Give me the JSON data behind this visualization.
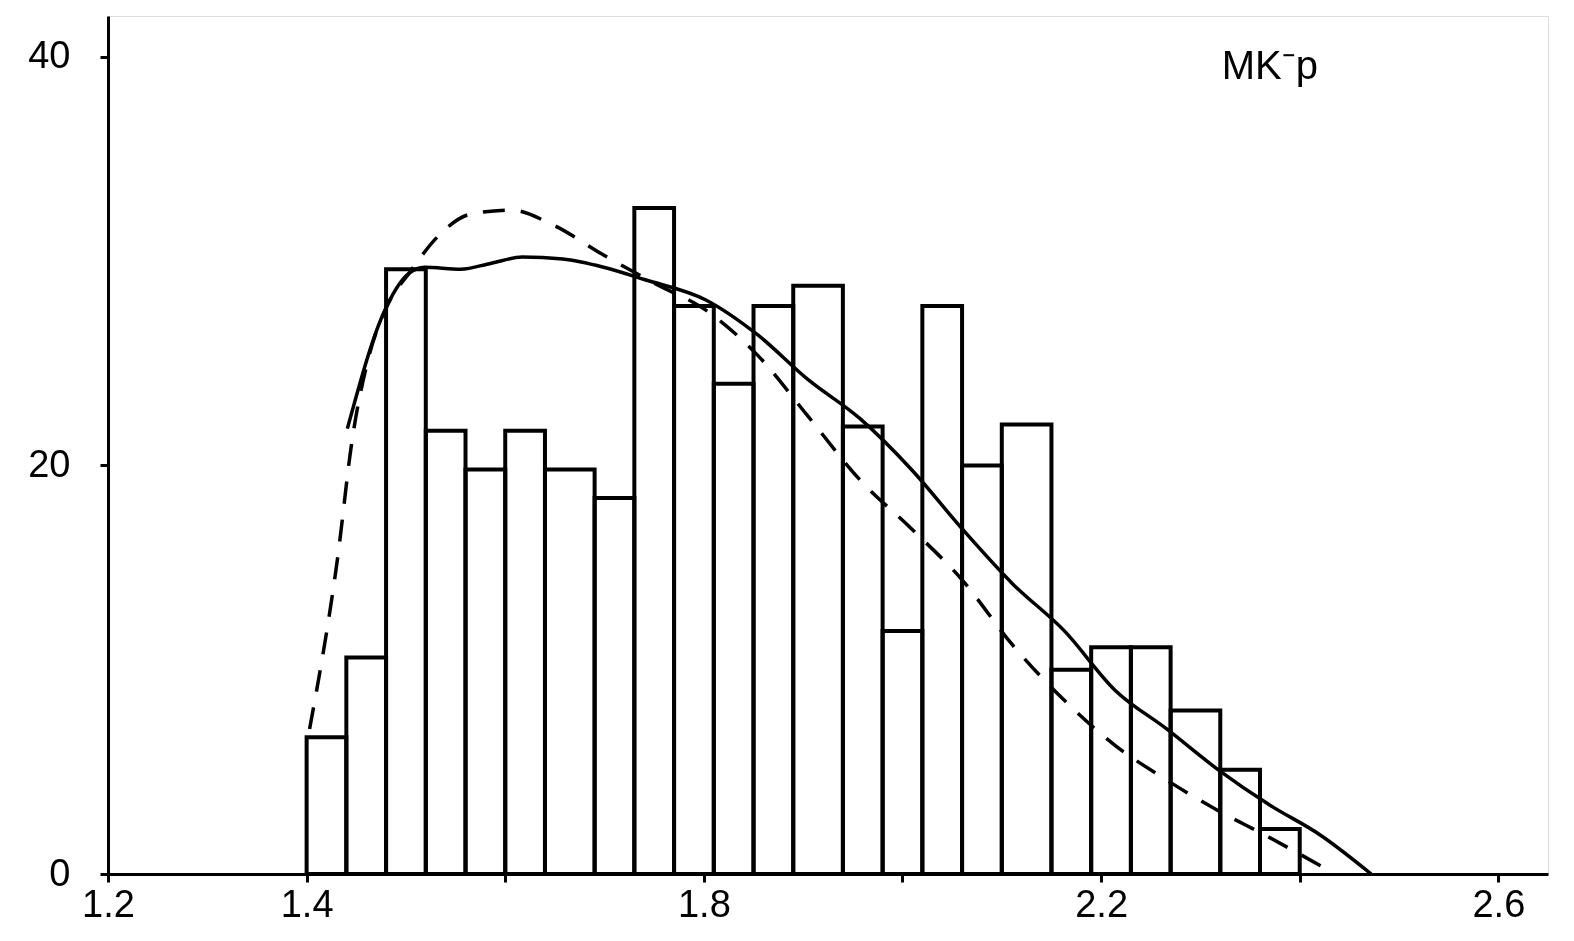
{
  "chart_data": {
    "type": "histogram",
    "title": "MK⁻p",
    "color": "#000000",
    "bins": [
      1.4,
      1.44,
      1.48,
      1.52,
      1.56,
      1.6,
      1.64,
      1.69,
      1.73,
      1.77,
      1.81,
      1.85,
      1.89,
      1.94,
      1.98,
      2.02,
      2.06,
      2.1,
      2.15,
      2.19,
      2.23,
      2.27,
      2.32,
      2.36,
      2.4
    ],
    "values": [
      6.7,
      10.6,
      29.6,
      21.7,
      19.8,
      21.7,
      19.8,
      18.4,
      32.6,
      27.8,
      24.0,
      27.8,
      28.8,
      21.9,
      11.9,
      27.8,
      20.0,
      22.0,
      10.0,
      11.1,
      11.1,
      8.0,
      5.1,
      2.2
    ],
    "series": [
      {
        "type": "line",
        "color": "#000000",
        "line_style": "solid",
        "x": [
          1.441,
          1.477,
          1.503,
          1.519,
          1.555,
          1.586,
          1.617,
          1.658,
          1.699,
          1.74,
          1.802,
          1.854,
          1.905,
          1.957,
          2.009,
          2.06,
          2.111,
          2.163,
          2.214,
          2.266,
          2.318,
          2.369,
          2.421,
          2.472
        ],
        "values": [
          21.8,
          27.4,
          29.4,
          29.7,
          29.6,
          29.9,
          30.2,
          30.1,
          29.7,
          29.1,
          28.1,
          26.4,
          24.2,
          22.3,
          19.8,
          16.9,
          14.2,
          11.9,
          9.0,
          7.1,
          5.1,
          3.4,
          1.9,
          0.0
        ]
      },
      {
        "type": "line",
        "color": "#000000",
        "line_style": "dashed",
        "x": [
          1.403,
          1.431,
          1.446,
          1.462,
          1.482,
          1.503,
          1.534,
          1.565,
          1.606,
          1.647,
          1.699,
          1.751,
          1.802,
          1.854,
          1.905,
          1.957,
          2.009,
          2.06,
          2.111,
          2.163,
          2.214,
          2.266,
          2.318,
          2.369,
          2.421
        ],
        "values": [
          7.1,
          15.4,
          21.3,
          25.2,
          27.9,
          29.4,
          31.3,
          32.3,
          32.5,
          31.8,
          30.3,
          28.9,
          27.6,
          25.4,
          22.4,
          19.3,
          16.9,
          14.4,
          11.2,
          8.5,
          6.3,
          4.6,
          3.1,
          1.8,
          0.4
        ]
      }
    ],
    "xlim": [
      1.2,
      2.65
    ],
    "ylim": [
      0,
      42
    ],
    "xticks": [
      1.2,
      1.4,
      {
        "value": 1.6,
        "label": null
      },
      1.8,
      {
        "value": 2.0,
        "label": null
      },
      2.2,
      {
        "value": 2.4,
        "label": null
      },
      2.6
    ],
    "yticks": [
      0,
      20,
      40
    ],
    "grid": false
  }
}
